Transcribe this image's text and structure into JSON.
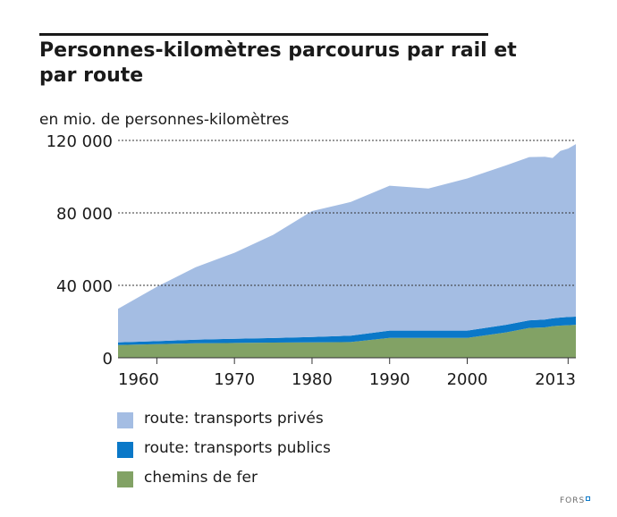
{
  "header": {
    "title": "Personnes-kilomètres parcourus par rail et par route",
    "unit_label": "en mio. de personnes-kilomètres"
  },
  "footer": {
    "source": "FORS"
  },
  "chart_data": {
    "type": "area",
    "stacked": true,
    "title": "Personnes-kilomètres parcourus par rail et par route",
    "ylabel": "en mio. de personnes-kilomètres",
    "xlabel": "",
    "xlim": [
      1955,
      2014
    ],
    "ylim": [
      0,
      120000
    ],
    "x_ticks": [
      1960,
      1970,
      1980,
      1990,
      2000,
      2013
    ],
    "x_tick_labels": [
      "1960",
      "1970",
      "1980",
      "1990",
      "2000",
      "2013"
    ],
    "y_ticks": [
      0,
      40000,
      80000,
      120000
    ],
    "y_tick_labels": [
      "0",
      "40 000",
      "80 000",
      "120 000"
    ],
    "grid": "horizontal dashed at y ticks",
    "legend_position": "bottom",
    "x": [
      1955,
      1960,
      1965,
      1970,
      1975,
      1980,
      1985,
      1990,
      1995,
      2000,
      2005,
      2008,
      2010,
      2011,
      2012,
      2013,
      2014
    ],
    "series": [
      {
        "name": "chemins de fer",
        "color": "#82a265",
        "values": [
          7000,
          7500,
          8000,
          8200,
          8400,
          8500,
          8700,
          11000,
          11000,
          11000,
          14000,
          16500,
          16800,
          17500,
          17800,
          18000,
          18200
        ]
      },
      {
        "name": "route: transports publics",
        "color": "#0a78c8",
        "values": [
          1500,
          1700,
          2000,
          2300,
          2500,
          3000,
          3500,
          4000,
          4000,
          4000,
          4200,
          4200,
          4300,
          4300,
          4400,
          4500,
          4500
        ]
      },
      {
        "name": "route: transports privés",
        "color": "#a4bde3",
        "values": [
          18500,
          30000,
          40000,
          47500,
          57000,
          69500,
          73800,
          80000,
          78500,
          84000,
          88000,
          90100,
          89900,
          88500,
          92000,
          93000,
          95300
        ]
      }
    ]
  }
}
